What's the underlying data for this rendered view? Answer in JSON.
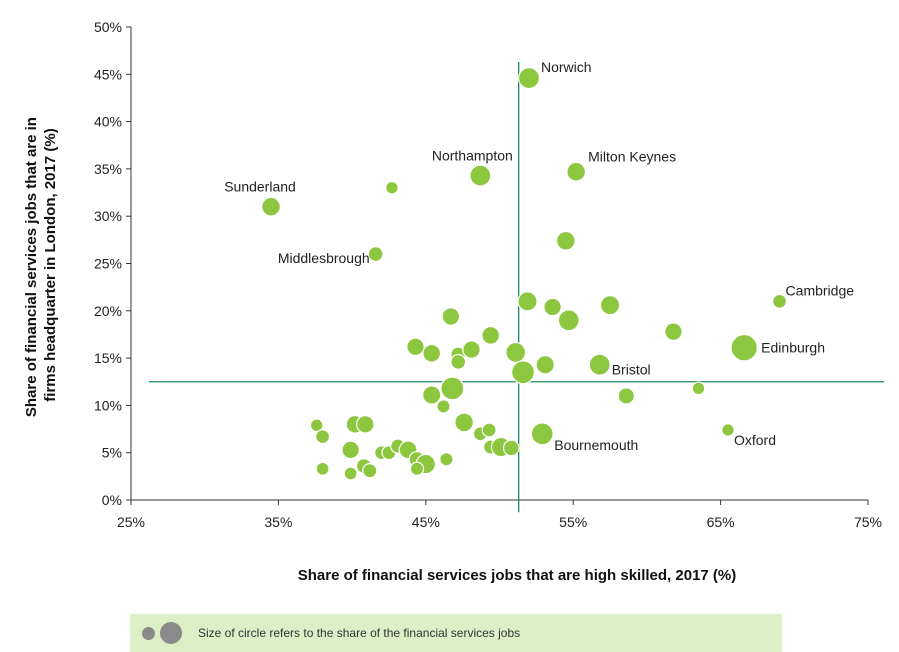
{
  "colors": {
    "bubble": "#8dc63f",
    "line": "#1b8a5a",
    "axis": "#333333",
    "legend_bg": "#dcefc6",
    "legend_dot": "#8a8a8a"
  },
  "legend": {
    "text": "Size of circle refers to the share of the financial services jobs"
  },
  "chart_data": {
    "type": "scatter",
    "title": "",
    "xlabel": "Share of financial services jobs that are high skilled, 2017 (%)",
    "ylabel_lines": [
      "Share of financial services jobs that are in",
      "firms headquarter in London, 2017 (%)"
    ],
    "xlim": [
      25,
      75
    ],
    "ylim": [
      0,
      50
    ],
    "xticks": [
      25,
      35,
      45,
      55,
      65,
      75
    ],
    "yticks": [
      0,
      5,
      10,
      15,
      20,
      25,
      30,
      35,
      40,
      45,
      50
    ],
    "xtick_labels": [
      "25%",
      "35%",
      "45%",
      "55%",
      "65%",
      "75%"
    ],
    "ytick_labels": [
      "0%",
      "5%",
      "10%",
      "15%",
      "20%",
      "25%",
      "30%",
      "35%",
      "40%",
      "45%",
      "50%"
    ],
    "reference_lines": {
      "x": 51.3,
      "y": 12.5
    },
    "size_encoding": "share of financial services jobs",
    "points": [
      {
        "x": 52.0,
        "y": 44.6,
        "size": 5,
        "label": "Norwich"
      },
      {
        "x": 48.7,
        "y": 34.3,
        "size": 5,
        "label": "Northampton"
      },
      {
        "x": 55.2,
        "y": 34.7,
        "size": 4,
        "label": "Milton Keynes"
      },
      {
        "x": 34.5,
        "y": 31.0,
        "size": 4,
        "label": "Sunderland"
      },
      {
        "x": 41.6,
        "y": 26.0,
        "size": 2.5,
        "label": "Middlesbrough"
      },
      {
        "x": 69.0,
        "y": 21.0,
        "size": 2.2,
        "label": "Cambridge"
      },
      {
        "x": 66.6,
        "y": 16.1,
        "size": 8,
        "label": "Edinburgh"
      },
      {
        "x": 56.8,
        "y": 14.3,
        "size": 5,
        "label": "Bristol"
      },
      {
        "x": 52.9,
        "y": 7.0,
        "size": 5.5,
        "label": "Bournemouth"
      },
      {
        "x": 65.5,
        "y": 7.4,
        "size": 1.8,
        "label": "Oxford"
      },
      {
        "x": 42.7,
        "y": 33.0,
        "size": 1.8,
        "label": ""
      },
      {
        "x": 54.5,
        "y": 27.4,
        "size": 4,
        "label": ""
      },
      {
        "x": 51.9,
        "y": 21.0,
        "size": 4.2,
        "label": ""
      },
      {
        "x": 53.6,
        "y": 20.4,
        "size": 3.5,
        "label": ""
      },
      {
        "x": 54.7,
        "y": 19.0,
        "size": 5,
        "label": ""
      },
      {
        "x": 57.5,
        "y": 20.6,
        "size": 4.2,
        "label": ""
      },
      {
        "x": 61.8,
        "y": 17.8,
        "size": 3.5,
        "label": ""
      },
      {
        "x": 46.7,
        "y": 19.4,
        "size": 3.5,
        "label": ""
      },
      {
        "x": 49.4,
        "y": 17.4,
        "size": 3.6,
        "label": ""
      },
      {
        "x": 44.3,
        "y": 16.2,
        "size": 3.5,
        "label": ""
      },
      {
        "x": 45.4,
        "y": 15.5,
        "size": 3.6,
        "label": ""
      },
      {
        "x": 47.2,
        "y": 15.4,
        "size": 2.5,
        "label": ""
      },
      {
        "x": 48.1,
        "y": 15.9,
        "size": 3.5,
        "label": ""
      },
      {
        "x": 47.2,
        "y": 14.6,
        "size": 2.5,
        "label": ""
      },
      {
        "x": 51.1,
        "y": 15.6,
        "size": 4.5,
        "label": ""
      },
      {
        "x": 53.1,
        "y": 14.3,
        "size": 3.8,
        "label": ""
      },
      {
        "x": 51.6,
        "y": 13.5,
        "size": 6,
        "label": ""
      },
      {
        "x": 46.8,
        "y": 11.8,
        "size": 6,
        "label": ""
      },
      {
        "x": 45.4,
        "y": 11.1,
        "size": 3.8,
        "label": ""
      },
      {
        "x": 46.2,
        "y": 9.9,
        "size": 2,
        "label": ""
      },
      {
        "x": 58.6,
        "y": 11.0,
        "size": 3,
        "label": ""
      },
      {
        "x": 63.5,
        "y": 11.8,
        "size": 1.8,
        "label": ""
      },
      {
        "x": 47.6,
        "y": 8.2,
        "size": 4,
        "label": ""
      },
      {
        "x": 48.7,
        "y": 7.0,
        "size": 2.2,
        "label": ""
      },
      {
        "x": 49.3,
        "y": 7.4,
        "size": 2.2,
        "label": ""
      },
      {
        "x": 40.2,
        "y": 8.0,
        "size": 3.6,
        "label": ""
      },
      {
        "x": 40.9,
        "y": 8.0,
        "size": 3.5,
        "label": ""
      },
      {
        "x": 37.6,
        "y": 7.9,
        "size": 1.8,
        "label": ""
      },
      {
        "x": 38.0,
        "y": 6.7,
        "size": 2.2,
        "label": ""
      },
      {
        "x": 39.9,
        "y": 5.3,
        "size": 3.5,
        "label": ""
      },
      {
        "x": 42.0,
        "y": 5.0,
        "size": 2.2,
        "label": ""
      },
      {
        "x": 42.5,
        "y": 5.0,
        "size": 2.2,
        "label": ""
      },
      {
        "x": 43.1,
        "y": 5.7,
        "size": 2.3,
        "label": ""
      },
      {
        "x": 43.8,
        "y": 5.3,
        "size": 3.6,
        "label": ""
      },
      {
        "x": 44.4,
        "y": 4.3,
        "size": 2.8,
        "label": ""
      },
      {
        "x": 45.0,
        "y": 3.8,
        "size": 4.3,
        "label": ""
      },
      {
        "x": 44.4,
        "y": 3.3,
        "size": 2,
        "label": ""
      },
      {
        "x": 40.8,
        "y": 3.6,
        "size": 2.5,
        "label": ""
      },
      {
        "x": 41.2,
        "y": 3.1,
        "size": 2.3,
        "label": ""
      },
      {
        "x": 38.0,
        "y": 3.3,
        "size": 1.9,
        "label": ""
      },
      {
        "x": 39.9,
        "y": 2.8,
        "size": 1.9,
        "label": ""
      },
      {
        "x": 46.4,
        "y": 4.3,
        "size": 2,
        "label": ""
      },
      {
        "x": 49.4,
        "y": 5.6,
        "size": 2.3,
        "label": ""
      },
      {
        "x": 50.1,
        "y": 5.6,
        "size": 4.2,
        "label": ""
      },
      {
        "x": 50.8,
        "y": 5.5,
        "size": 2.8,
        "label": ""
      }
    ]
  }
}
